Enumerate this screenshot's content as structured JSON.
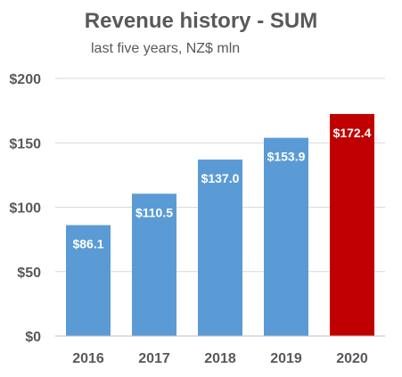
{
  "chart_data": {
    "type": "bar",
    "title": "Revenue history - SUM",
    "subtitle": "last five years, NZ$ mln",
    "categories": [
      "2016",
      "2017",
      "2018",
      "2019",
      "2020"
    ],
    "values": [
      86.1,
      110.5,
      137.0,
      153.9,
      172.4
    ],
    "data_labels": [
      "$86.1",
      "$110.5",
      "$137.0",
      "$153.9",
      "$172.4"
    ],
    "ylim": [
      0,
      200
    ],
    "yticks": [
      0,
      50,
      100,
      150,
      200
    ],
    "ytick_labels": [
      "$0",
      "$50",
      "$100",
      "$150",
      "$200"
    ],
    "grid": true,
    "colors": {
      "bar": "#5B9BD5",
      "highlight": "#C00000",
      "grid": "#D9D9D9",
      "axis": "#BFBFBF"
    },
    "highlight_index": 4
  }
}
